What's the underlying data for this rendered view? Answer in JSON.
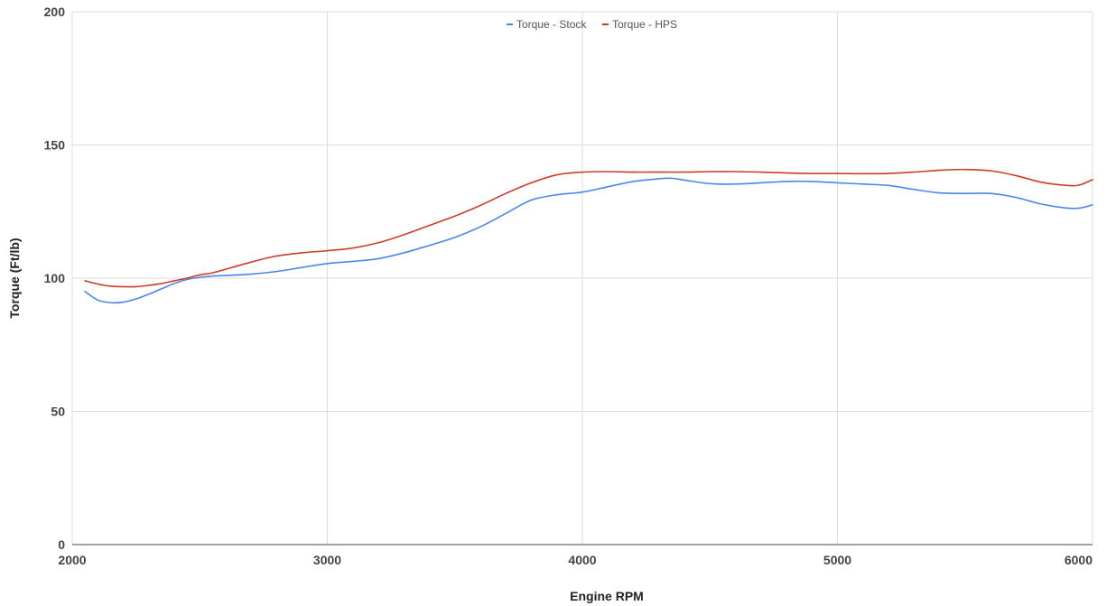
{
  "chart_data": {
    "type": "line",
    "title": "",
    "xlabel": "Engine RPM",
    "ylabel": "Torque (Ft/lb)",
    "xlim": [
      2000,
      6000
    ],
    "ylim": [
      0,
      200
    ],
    "x_ticks": [
      2000,
      3000,
      4000,
      5000,
      6000
    ],
    "y_ticks": [
      0,
      50,
      100,
      150,
      200
    ],
    "grid": true,
    "legend_position": "top-center",
    "series": [
      {
        "name": "Torque - Stock",
        "color": "#4a86e8",
        "x": [
          2050,
          2100,
          2150,
          2200,
          2250,
          2300,
          2350,
          2400,
          2450,
          2500,
          2550,
          2600,
          2700,
          2800,
          2900,
          3000,
          3100,
          3200,
          3300,
          3400,
          3500,
          3600,
          3700,
          3800,
          3900,
          4000,
          4100,
          4200,
          4300,
          4350,
          4400,
          4500,
          4600,
          4700,
          4800,
          4900,
          5000,
          5100,
          5200,
          5300,
          5400,
          5500,
          5600,
          5700,
          5800,
          5900,
          5950,
          6000
        ],
        "y": [
          95,
          91.8,
          90.8,
          91,
          92.2,
          94,
          96,
          98,
          99.5,
          100.3,
          100.8,
          101,
          101.5,
          102.5,
          104,
          105.5,
          106.3,
          107.3,
          109.5,
          112.3,
          115.3,
          119.3,
          124.3,
          129.3,
          131.3,
          132.3,
          134.3,
          136.3,
          137.3,
          137.5,
          136.8,
          135.5,
          135.3,
          135.8,
          136.3,
          136.3,
          135.8,
          135.3,
          134.8,
          133.3,
          132,
          131.8,
          131.8,
          130.3,
          127.8,
          126.3,
          126.3,
          127.5
        ]
      },
      {
        "name": "Torque - HPS",
        "color": "#cc3b2a",
        "x": [
          2050,
          2100,
          2150,
          2200,
          2250,
          2300,
          2350,
          2400,
          2450,
          2500,
          2550,
          2600,
          2700,
          2800,
          2900,
          3000,
          3100,
          3200,
          3300,
          3400,
          3500,
          3600,
          3700,
          3800,
          3900,
          4000,
          4100,
          4200,
          4300,
          4400,
          4500,
          4600,
          4700,
          4800,
          4900,
          5000,
          5100,
          5200,
          5300,
          5400,
          5500,
          5600,
          5700,
          5800,
          5900,
          5950,
          6000
        ],
        "y": [
          99,
          97.8,
          97,
          96.8,
          96.8,
          97.3,
          98,
          99,
          100,
          101.2,
          102,
          103.3,
          106,
          108.3,
          109.5,
          110.3,
          111.3,
          113.3,
          116.3,
          119.8,
          123.3,
          127.3,
          131.8,
          135.8,
          138.8,
          139.8,
          140,
          139.8,
          139.8,
          139.8,
          140,
          140,
          139.8,
          139.5,
          139.3,
          139.3,
          139.2,
          139.3,
          139.8,
          140.5,
          140.8,
          140.3,
          138.5,
          136,
          134.8,
          135,
          137
        ]
      }
    ]
  }
}
